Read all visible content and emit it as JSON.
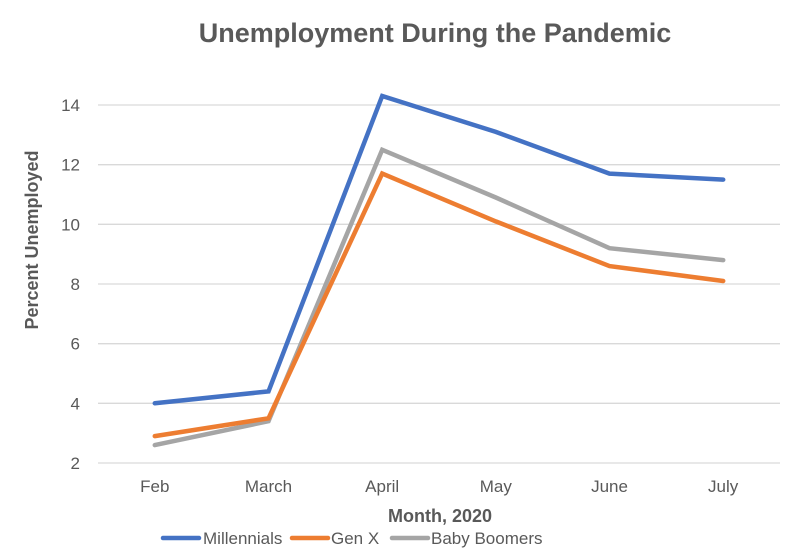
{
  "chart_data": {
    "type": "line",
    "title": "Unemployment During the Pandemic",
    "xlabel": "Month, 2020",
    "ylabel": "Percent Unemployed",
    "categories": [
      "Feb",
      "March",
      "April",
      "May",
      "June",
      "July"
    ],
    "ylim": [
      2,
      14
    ],
    "yticks": [
      2,
      4,
      6,
      8,
      10,
      12,
      14
    ],
    "grid": true,
    "legend_position": "bottom",
    "series": [
      {
        "name": "Millennials",
        "color": "#4472C4",
        "values": [
          4.0,
          4.4,
          14.3,
          13.1,
          11.7,
          11.5
        ]
      },
      {
        "name": "Gen X",
        "color": "#ED7D31",
        "values": [
          2.9,
          3.5,
          11.7,
          10.1,
          8.6,
          8.1
        ]
      },
      {
        "name": "Baby Boomers",
        "color": "#A5A5A5",
        "values": [
          2.6,
          3.4,
          12.5,
          10.9,
          9.2,
          8.8
        ]
      }
    ]
  },
  "colors": {
    "text": "#595959",
    "grid": "#d9d9d9",
    "background": "#ffffff"
  }
}
